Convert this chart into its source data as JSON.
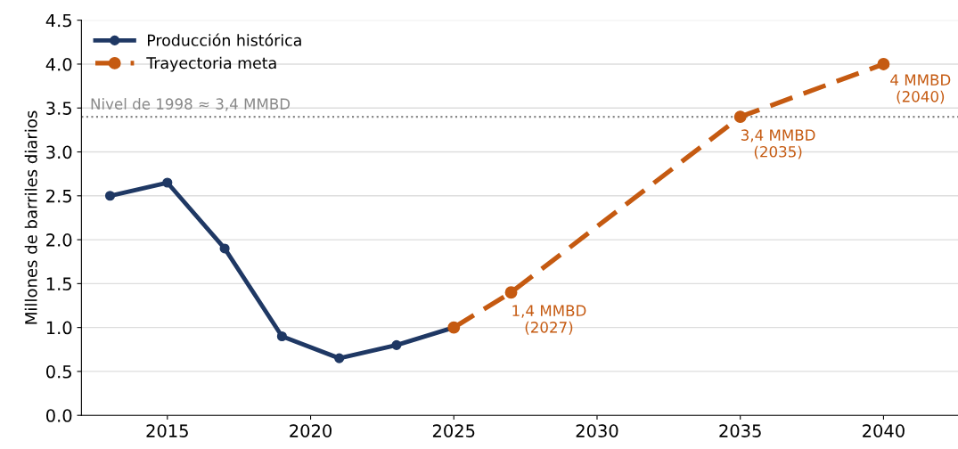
{
  "chart_data": {
    "type": "line",
    "ylabel": "Millones de barriles diarios",
    "series": [
      {
        "name": "Producción histórica",
        "color": "#1f3864",
        "x": [
          2013,
          2015,
          2017,
          2019,
          2021,
          2023,
          2025
        ],
        "values": [
          2.5,
          2.65,
          1.9,
          0.9,
          0.65,
          0.8,
          1.0
        ],
        "line_style": "solid"
      },
      {
        "name": "Trayectoria meta",
        "color": "#c55a11",
        "x": [
          2025,
          2027,
          2035,
          2040
        ],
        "values": [
          1.0,
          1.4,
          3.4,
          4.0
        ],
        "line_style": "dashed"
      }
    ],
    "xlim": [
      2012,
      2042.6
    ],
    "xticks": [
      2015,
      2020,
      2025,
      2030,
      2035,
      2040
    ],
    "ylim": [
      0,
      4.5
    ],
    "yticks": [
      {
        "value": 0,
        "label": "0.0"
      },
      {
        "value": 0.5,
        "label": "0.5"
      },
      {
        "value": 1,
        "label": "1.0"
      },
      {
        "value": 1.5,
        "label": "1.5"
      },
      {
        "value": 2,
        "label": "2.0"
      },
      {
        "value": 2.5,
        "label": "2.5"
      },
      {
        "value": 3,
        "label": "3.0"
      },
      {
        "value": 3.5,
        "label": "3.5"
      },
      {
        "value": 4,
        "label": "4.0"
      },
      {
        "value": 4.5,
        "label": "4.5"
      }
    ],
    "ref_lines": [
      {
        "axis": "y",
        "value": 3.4,
        "label": "Nivel de 1998 ≈ 3,4 MMBD",
        "color": "#888888",
        "line_style": "dotted"
      }
    ],
    "annotations": [
      {
        "text": "1,4 MMBD\n(2027)",
        "x": 2027,
        "y": 1.4
      },
      {
        "text": "3,4 MMBD\n(2035)",
        "x": 2035,
        "y": 3.4
      },
      {
        "text": "4 MMBD\n(2040)",
        "x": 2040,
        "y": 4.0
      }
    ],
    "grid": "y",
    "legend": "top left",
    "marker": "circle"
  }
}
